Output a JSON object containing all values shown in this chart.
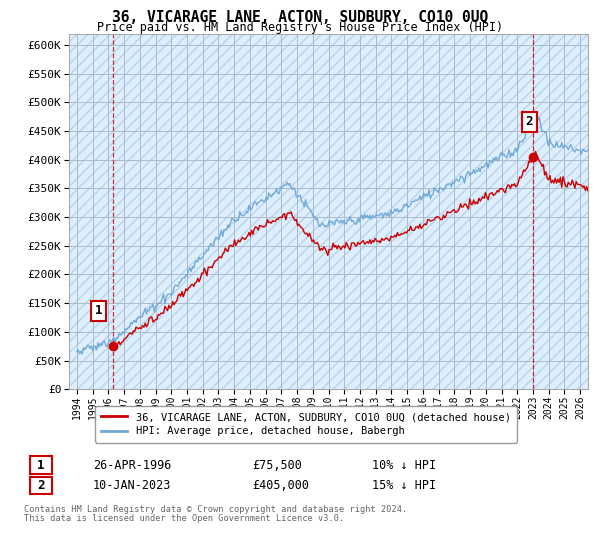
{
  "title": "36, VICARAGE LANE, ACTON, SUDBURY, CO10 0UQ",
  "subtitle": "Price paid vs. HM Land Registry's House Price Index (HPI)",
  "ylim": [
    0,
    620000
  ],
  "yticks": [
    0,
    50000,
    100000,
    150000,
    200000,
    250000,
    300000,
    350000,
    400000,
    450000,
    500000,
    550000,
    600000
  ],
  "ytick_labels": [
    "£0",
    "£50K",
    "£100K",
    "£150K",
    "£200K",
    "£250K",
    "£300K",
    "£350K",
    "£400K",
    "£450K",
    "£500K",
    "£550K",
    "£600K"
  ],
  "sale1_date": "26-APR-1996",
  "sale1_price": 75500,
  "sale1_year": 1996.32,
  "sale1_label": "1",
  "sale2_date": "10-JAN-2023",
  "sale2_price": 405000,
  "sale2_year": 2023.03,
  "sale2_label": "2",
  "legend_entry1": "36, VICARAGE LANE, ACTON, SUDBURY, CO10 0UQ (detached house)",
  "legend_entry2": "HPI: Average price, detached house, Babergh",
  "table_row1": [
    "1",
    "26-APR-1996",
    "£75,500",
    "10% ↓ HPI"
  ],
  "table_row2": [
    "2",
    "10-JAN-2023",
    "£405,000",
    "15% ↓ HPI"
  ],
  "footer1": "Contains HM Land Registry data © Crown copyright and database right 2024.",
  "footer2": "This data is licensed under the Open Government Licence v3.0.",
  "sale_color": "#cc0000",
  "hpi_color": "#6fa8d4",
  "chart_bg": "#ddeeff",
  "hatch_color": "#c8d8e8",
  "bg_color": "#ffffff",
  "grid_color": "#aabbcc",
  "xlim": [
    1993.5,
    2026.5
  ],
  "xtick_years": [
    1994,
    1995,
    1996,
    1997,
    1998,
    1999,
    2000,
    2001,
    2002,
    2003,
    2004,
    2005,
    2006,
    2007,
    2008,
    2009,
    2010,
    2011,
    2012,
    2013,
    2014,
    2015,
    2016,
    2017,
    2018,
    2019,
    2020,
    2021,
    2022,
    2023,
    2024,
    2025,
    2026
  ]
}
